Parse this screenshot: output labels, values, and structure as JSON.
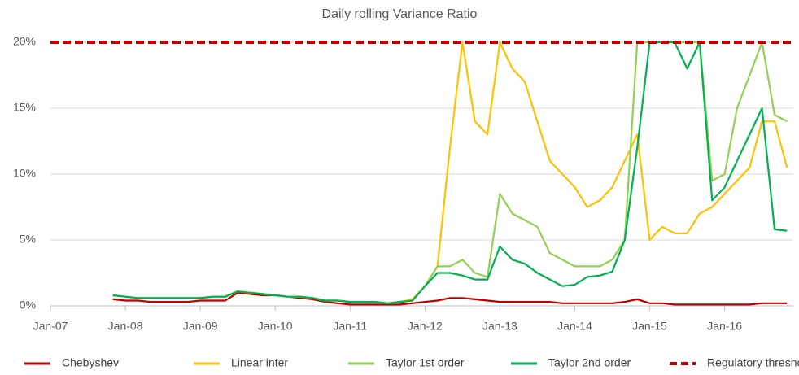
{
  "chart_data": {
    "type": "line",
    "title": "Daily rolling Variance Ratio",
    "x": [
      "2007-11",
      "2008-01",
      "2008-03",
      "2008-05",
      "2008-07",
      "2008-09",
      "2008-11",
      "2009-01",
      "2009-03",
      "2009-05",
      "2009-07",
      "2009-09",
      "2009-11",
      "2010-01",
      "2010-03",
      "2010-05",
      "2010-07",
      "2010-09",
      "2010-11",
      "2011-01",
      "2011-03",
      "2011-05",
      "2011-07",
      "2011-09",
      "2011-11",
      "2012-01",
      "2012-03",
      "2012-05",
      "2012-07",
      "2012-09",
      "2012-11",
      "2013-01",
      "2013-03",
      "2013-05",
      "2013-07",
      "2013-09",
      "2013-11",
      "2014-01",
      "2014-03",
      "2014-05",
      "2014-07",
      "2014-09",
      "2014-11",
      "2015-01",
      "2015-03",
      "2015-05",
      "2015-07",
      "2015-09",
      "2015-11",
      "2016-01",
      "2016-03",
      "2016-05",
      "2016-07",
      "2016-09",
      "2016-11"
    ],
    "series": [
      {
        "name": "Chebyshev",
        "color": "#c00000",
        "values": [
          0.5,
          0.4,
          0.4,
          0.3,
          0.3,
          0.3,
          0.3,
          0.4,
          0.4,
          0.4,
          1.0,
          0.9,
          0.8,
          0.8,
          0.7,
          0.6,
          0.5,
          0.3,
          0.2,
          0.1,
          0.1,
          0.1,
          0.1,
          0.1,
          0.2,
          0.3,
          0.4,
          0.6,
          0.6,
          0.5,
          0.4,
          0.3,
          0.3,
          0.3,
          0.3,
          0.3,
          0.2,
          0.2,
          0.2,
          0.2,
          0.2,
          0.3,
          0.5,
          0.2,
          0.2,
          0.1,
          0.1,
          0.1,
          0.1,
          0.1,
          0.1,
          0.1,
          0.2,
          0.2,
          0.2
        ]
      },
      {
        "name": "Linear inter",
        "color": "#ffc000",
        "values": [
          0.8,
          0.7,
          0.6,
          0.6,
          0.6,
          0.6,
          0.6,
          0.6,
          0.7,
          0.7,
          1.1,
          1.0,
          0.9,
          0.8,
          0.7,
          0.7,
          0.6,
          0.4,
          0.4,
          0.3,
          0.3,
          0.3,
          0.2,
          0.3,
          0.5,
          1.5,
          3,
          12,
          20,
          14,
          13,
          20,
          18,
          17,
          14,
          11,
          10,
          9,
          7.5,
          8,
          9,
          11,
          13,
          5,
          6,
          5.5,
          5.5,
          7,
          7.5,
          8.5,
          9.5,
          10.5,
          14,
          14,
          10.5
        ]
      },
      {
        "name": "Taylor 1st order",
        "color": "#92d050",
        "values": [
          0.8,
          0.7,
          0.6,
          0.6,
          0.6,
          0.6,
          0.6,
          0.6,
          0.7,
          0.7,
          1.1,
          1.0,
          0.9,
          0.8,
          0.7,
          0.7,
          0.6,
          0.4,
          0.4,
          0.3,
          0.3,
          0.3,
          0.2,
          0.3,
          0.4,
          1.5,
          3,
          3,
          3.5,
          2.5,
          2.2,
          8.5,
          7,
          6.5,
          6,
          4,
          3.5,
          3,
          3,
          3,
          3.5,
          5,
          20,
          20,
          20,
          20,
          20,
          20,
          9.5,
          10,
          15,
          17.5,
          20,
          14.5,
          14
        ]
      },
      {
        "name": "Taylor 2nd  order",
        "color": "#00b050",
        "values": [
          0.8,
          0.7,
          0.6,
          0.6,
          0.6,
          0.6,
          0.6,
          0.6,
          0.7,
          0.7,
          1.1,
          1.0,
          0.9,
          0.8,
          0.7,
          0.7,
          0.6,
          0.4,
          0.4,
          0.3,
          0.3,
          0.3,
          0.2,
          0.3,
          0.4,
          1.5,
          2.5,
          2.5,
          2.3,
          2,
          2,
          4.5,
          3.5,
          3.2,
          2.5,
          2,
          1.5,
          1.6,
          2.2,
          2.3,
          2.6,
          5,
          12,
          20,
          20,
          20,
          18,
          20,
          8,
          9,
          11,
          13,
          15,
          5.8,
          5.7
        ]
      }
    ],
    "threshold": {
      "name": "Regulatory threshold",
      "color": "#c00000",
      "value": 20
    },
    "xlim": [
      "2007-01",
      "2016-12"
    ],
    "xticks": [
      {
        "value": "2007-01",
        "label": "Jan-07"
      },
      {
        "value": "2008-01",
        "label": "Jan-08"
      },
      {
        "value": "2009-01",
        "label": "Jan-09"
      },
      {
        "value": "2010-01",
        "label": "Jan-10"
      },
      {
        "value": "2011-01",
        "label": "Jan-11"
      },
      {
        "value": "2012-01",
        "label": "Jan-12"
      },
      {
        "value": "2013-01",
        "label": "Jan-13"
      },
      {
        "value": "2014-01",
        "label": "Jan-14"
      },
      {
        "value": "2015-01",
        "label": "Jan-15"
      },
      {
        "value": "2016-01",
        "label": "Jan-16"
      }
    ],
    "ylim": [
      0,
      20
    ],
    "yticks": [
      {
        "value": 0,
        "label": "0%"
      },
      {
        "value": 5,
        "label": "5%"
      },
      {
        "value": 10,
        "label": "10%"
      },
      {
        "value": 15,
        "label": "15%"
      },
      {
        "value": 20,
        "label": "20%"
      }
    ],
    "grid": true,
    "legend": "bottom"
  }
}
